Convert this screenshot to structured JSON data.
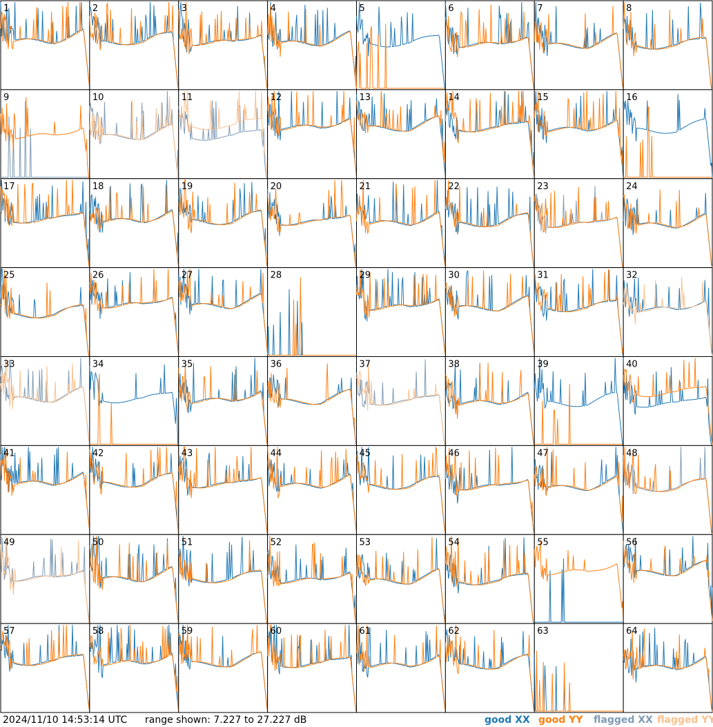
{
  "chart_data": {
    "type": "line",
    "panels": [
      "1",
      "2",
      "3",
      "4",
      "5",
      "6",
      "7",
      "8",
      "9",
      "10",
      "11",
      "12",
      "13",
      "14",
      "15",
      "16",
      "17",
      "18",
      "19",
      "20",
      "21",
      "22",
      "23",
      "24",
      "25",
      "26",
      "27",
      "28",
      "29",
      "30",
      "31",
      "32",
      "33",
      "34",
      "35",
      "36",
      "37",
      "38",
      "39",
      "40",
      "41",
      "42",
      "43",
      "44",
      "45",
      "46",
      "47",
      "48",
      "49",
      "50",
      "51",
      "52",
      "53",
      "54",
      "55",
      "56",
      "57",
      "58",
      "59",
      "60",
      "61",
      "62",
      "63",
      "64"
    ],
    "grid": {
      "rows": 8,
      "cols": 8
    },
    "series": [
      {
        "name": "good XX",
        "color": "#1f77b4"
      },
      {
        "name": "good YY",
        "color": "#ff7f0e"
      },
      {
        "name": "flagged XX",
        "color": "#7f9bb5"
      },
      {
        "name": "flagged YY",
        "color": "#f9c08f"
      }
    ],
    "flagged": {
      "XX": [
        "9",
        "10",
        "11",
        "23",
        "33",
        "37",
        "48",
        "49"
      ],
      "YY": [
        "10",
        "11",
        "32",
        "33",
        "37",
        "49"
      ]
    },
    "range_db": [
      7.227,
      27.227
    ]
  },
  "footer": {
    "timestamp": "2024/11/10 14:53:14 UTC",
    "range": "range shown: 7.227 to 27.227 dB"
  },
  "legend": [
    "good XX",
    "good YY",
    "flagged XX",
    "flagged YY"
  ]
}
